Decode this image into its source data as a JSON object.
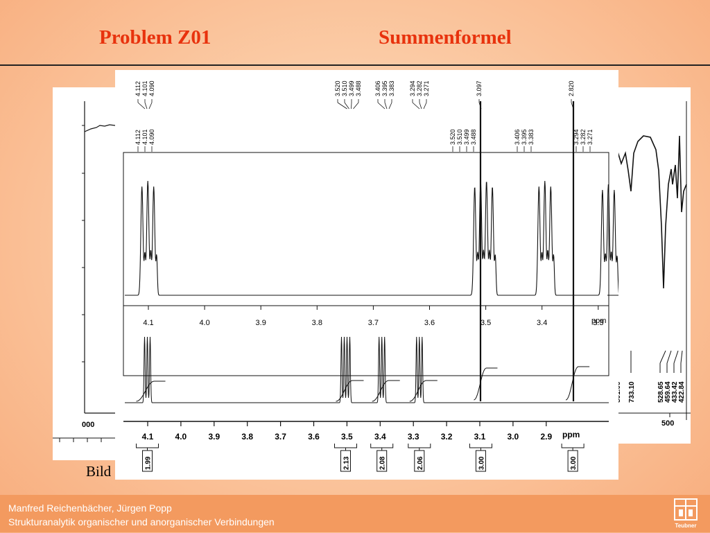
{
  "slide": {
    "title_left": "Problem Z01",
    "title_right": "Summenformel",
    "caption": "Bild"
  },
  "footer": {
    "authors": "Manfred Reichenbächer, Jürgen Popp",
    "book_title": "Strukturanalytik organischer und anorganischer Verbindungen",
    "logo_text": "Teubner"
  },
  "back_left_spectrum": {
    "axis_label": "000"
  },
  "back_right_spectrum": {
    "peak_labels": [
      "801.00",
      "733.10",
      "528.65",
      "459.64",
      "433.42",
      "422.84"
    ],
    "axis_label": "500"
  },
  "nmr_expanded": {
    "peak_groups": [
      {
        "labels": [
          "4.112",
          "4.101",
          "4.090"
        ]
      },
      {
        "labels": [
          "3.520",
          "3.510",
          "3.499",
          "3.488"
        ]
      },
      {
        "labels": [
          "3.406",
          "3.395",
          "3.383"
        ]
      },
      {
        "labels": [
          "3.294",
          "3.282",
          "3.271"
        ]
      },
      {
        "labels": [
          "3.097"
        ]
      },
      {
        "labels": [
          "2.820"
        ]
      }
    ],
    "inner_peak_groups": [
      {
        "labels": [
          "4.112",
          "4.101",
          "4.090"
        ]
      },
      {
        "labels": [
          "3.520",
          "3.510",
          "3.499",
          "3.488"
        ]
      },
      {
        "labels": [
          "3.406",
          "3.395",
          "3.383"
        ]
      },
      {
        "labels": [
          "3.294",
          "3.282",
          "3.271"
        ]
      }
    ],
    "axis_ticks": [
      "4.1",
      "4.0",
      "3.9",
      "3.8",
      "3.7",
      "3.6",
      "3.5",
      "3.4",
      "3.3"
    ],
    "axis_unit": "ppm"
  },
  "nmr_full": {
    "axis_ticks": [
      "4.1",
      "4.0",
      "3.9",
      "3.8",
      "3.7",
      "3.6",
      "3.5",
      "3.4",
      "3.3",
      "3.2",
      "3.1",
      "3.0",
      "2.9"
    ],
    "axis_unit": "ppm",
    "integrals": [
      "1.99",
      "2.13",
      "2.08",
      "2.06",
      "3.00",
      "3.00"
    ]
  }
}
